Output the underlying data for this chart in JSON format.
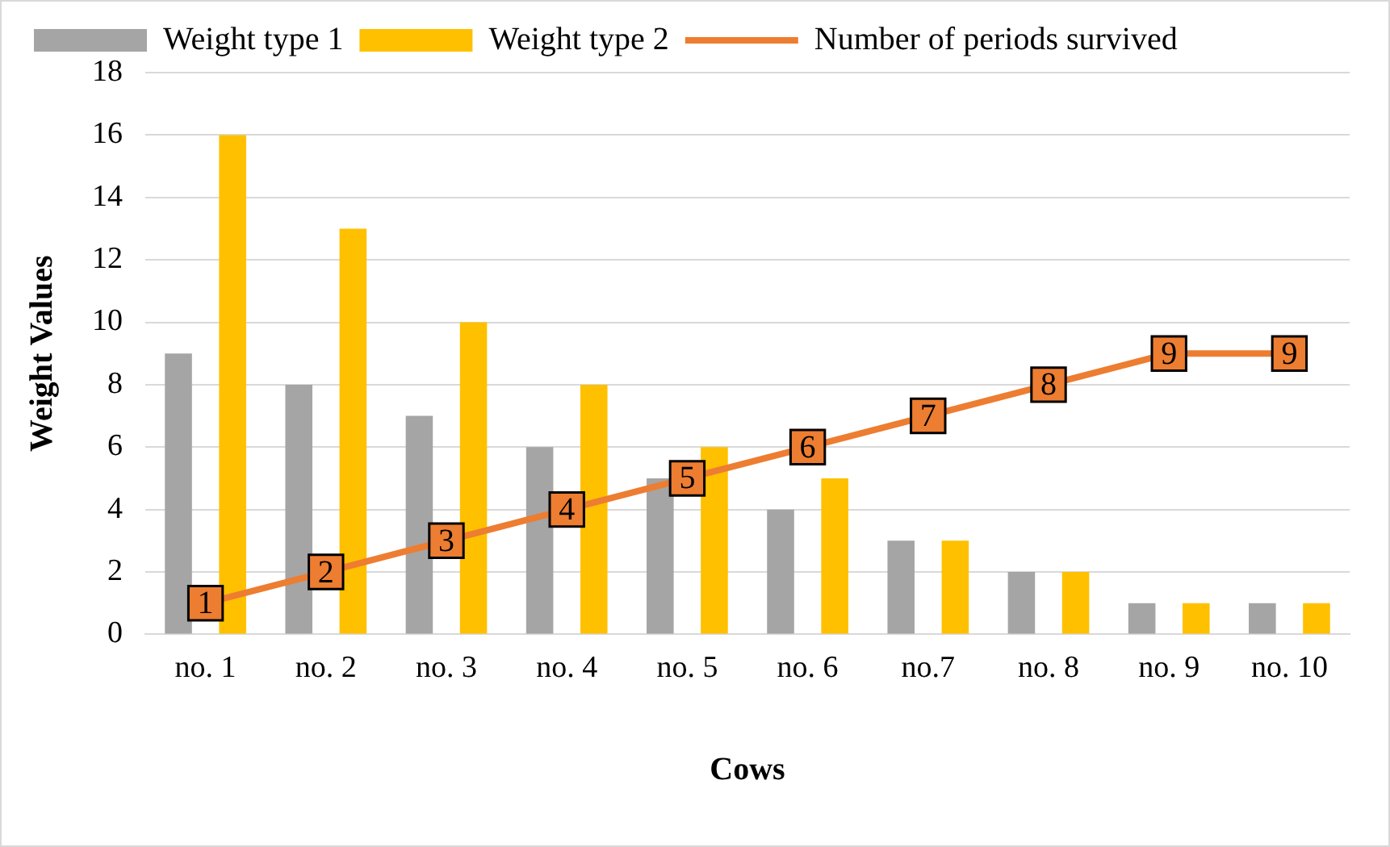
{
  "chart_data": {
    "type": "bar",
    "xlabel": "Cows",
    "ylabel": "Weight Values",
    "categories": [
      "no. 1",
      "no. 2",
      "no. 3",
      "no. 4",
      "no. 5",
      "no. 6",
      "no.7",
      "no. 8",
      "no. 9",
      "no. 10"
    ],
    "series": [
      {
        "name": "Weight type 1",
        "color": "#a5a5a5",
        "values": [
          9,
          8,
          7,
          6,
          5,
          4,
          3,
          2,
          1,
          1
        ]
      },
      {
        "name": "Weight type 2",
        "color": "#ffc000",
        "values": [
          16,
          13,
          10,
          8,
          6,
          5,
          3,
          2,
          1,
          1
        ]
      },
      {
        "name": "Number of periods survived",
        "type": "line",
        "color": "#ed7d31",
        "marker": "square",
        "values": [
          1,
          2,
          3,
          4,
          5,
          6,
          7,
          8,
          9,
          9
        ],
        "value_labels": [
          "1",
          "2",
          "3",
          "4",
          "5",
          "6",
          "7",
          "8",
          "9",
          "9"
        ]
      }
    ],
    "ylim": [
      0,
      18
    ],
    "yticks": [
      0,
      2,
      4,
      6,
      8,
      10,
      12,
      14,
      16,
      18
    ],
    "grid": "y",
    "legend": "top"
  }
}
